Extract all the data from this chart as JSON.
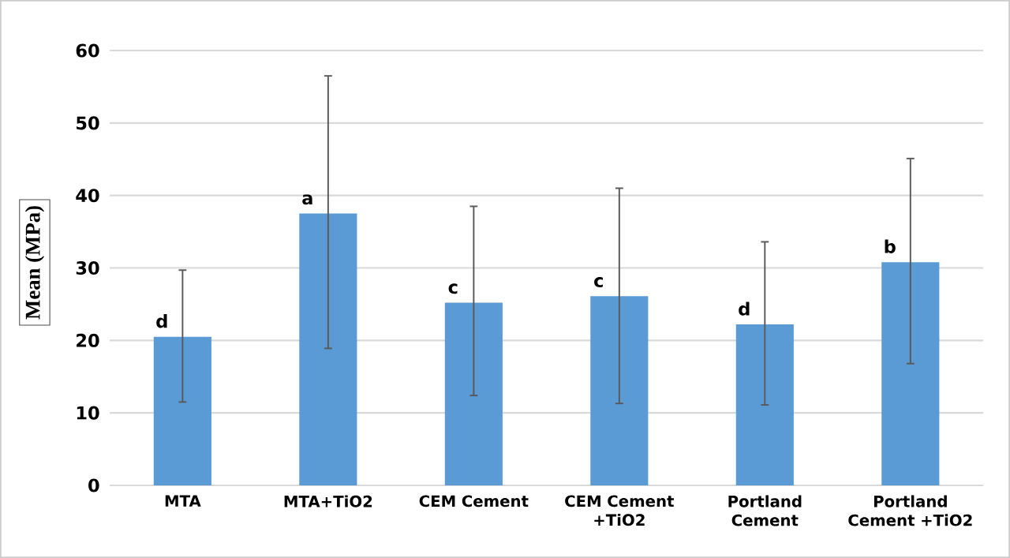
{
  "chart_data": {
    "type": "bar",
    "ylabel": "Mean (MPa)",
    "categories": [
      "MTA",
      "MTA+TiO2",
      "CEM Cement",
      "CEM Cement +TiO2",
      "Portland Cement",
      "Portland Cement +TiO2"
    ],
    "values": [
      20.5,
      37.5,
      25.2,
      26.1,
      22.2,
      30.8
    ],
    "errors": [
      [
        11.5,
        29.7
      ],
      [
        18.9,
        56.5
      ],
      [
        12.4,
        38.5
      ],
      [
        11.3,
        41.0
      ],
      [
        11.1,
        33.6
      ],
      [
        16.8,
        45.1
      ]
    ],
    "color": "#5b9bd5",
    "ylim": [
      0,
      60
    ],
    "yticks": [
      0,
      10,
      20,
      30,
      40,
      50,
      60
    ],
    "grid": "y",
    "annotations": [
      {
        "text": "d",
        "x": "MTA",
        "y": 20.5
      },
      {
        "text": "a",
        "x": "MTA+TiO2",
        "y": 37.5
      },
      {
        "text": "c",
        "x": "CEM Cement",
        "y": 25.2
      },
      {
        "text": "c",
        "x": "CEM Cement +TiO2",
        "y": 26.1
      },
      {
        "text": "d",
        "x": "Portland Cement",
        "y": 22.2
      },
      {
        "text": "b",
        "x": "Portland Cement +TiO2",
        "y": 30.8
      }
    ]
  }
}
